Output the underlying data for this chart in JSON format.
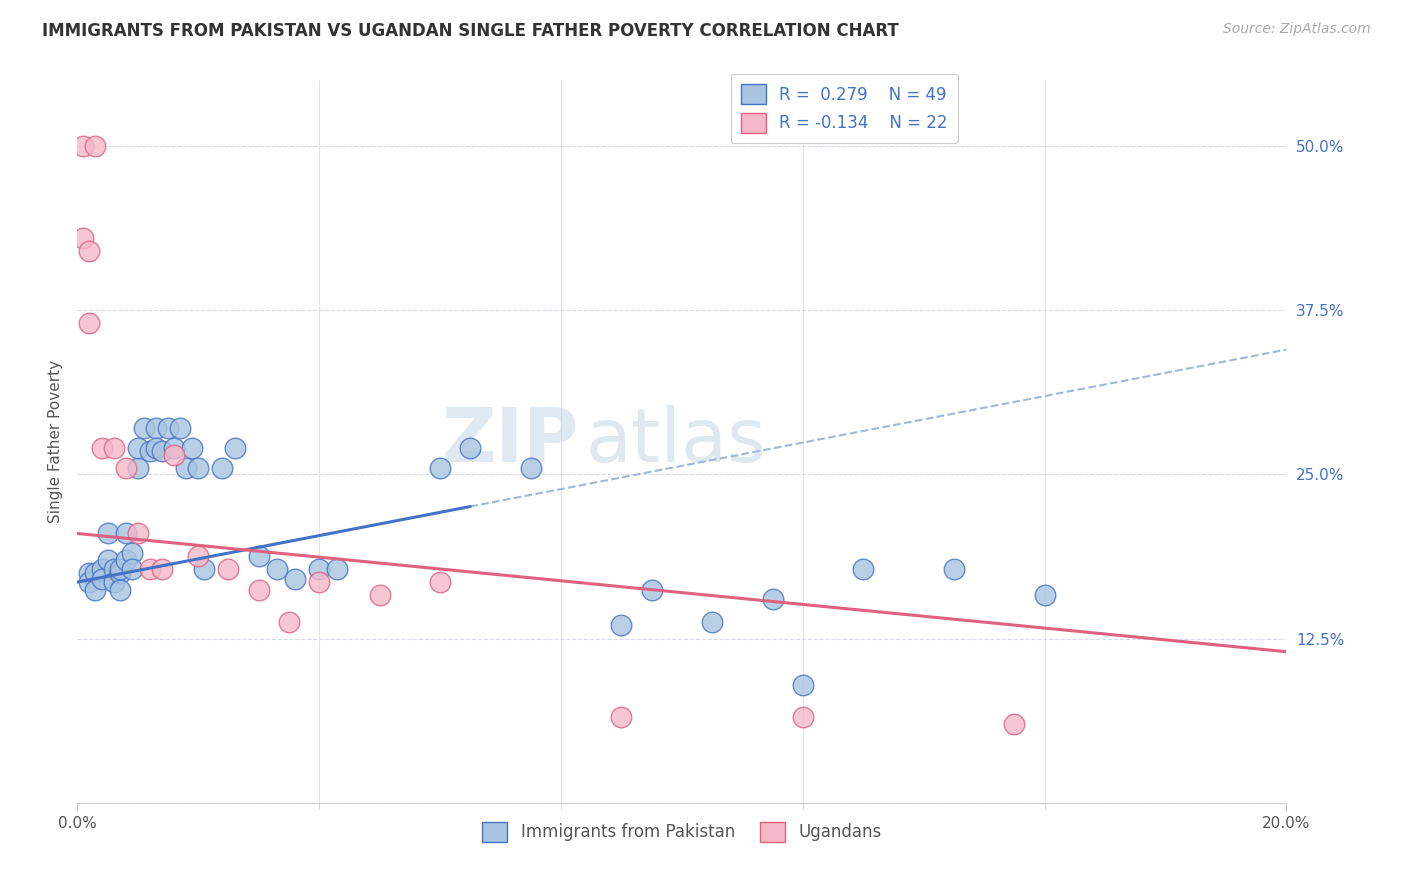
{
  "title": "IMMIGRANTS FROM PAKISTAN VS UGANDAN SINGLE FATHER POVERTY CORRELATION CHART",
  "source": "Source: ZipAtlas.com",
  "ylabel": "Single Father Poverty",
  "xlim": [
    0.0,
    0.2
  ],
  "ylim": [
    0.0,
    0.55
  ],
  "y_ticks_right": [
    0.0,
    0.125,
    0.25,
    0.375,
    0.5
  ],
  "y_tick_labels_right": [
    "",
    "12.5%",
    "25.0%",
    "37.5%",
    "50.0%"
  ],
  "color_pakistan": "#a8c4e0",
  "color_ugandan": "#f4b8c8",
  "color_pakistan_line": "#4472c4",
  "color_ugandan_line": "#e06080",
  "color_legend_text": "#4472c4",
  "watermark_zip": "ZIP",
  "watermark_atlas": "atlas",
  "background_color": "#ffffff",
  "grid_color": "#d8d8e8",
  "pakistan_x": [
    0.002,
    0.002,
    0.003,
    0.003,
    0.004,
    0.004,
    0.005,
    0.005,
    0.006,
    0.006,
    0.007,
    0.007,
    0.007,
    0.008,
    0.008,
    0.009,
    0.009,
    0.01,
    0.01,
    0.011,
    0.012,
    0.013,
    0.013,
    0.014,
    0.015,
    0.016,
    0.017,
    0.018,
    0.019,
    0.02,
    0.021,
    0.024,
    0.026,
    0.03,
    0.033,
    0.036,
    0.04,
    0.043,
    0.06,
    0.065,
    0.075,
    0.09,
    0.095,
    0.105,
    0.115,
    0.12,
    0.13,
    0.145,
    0.16
  ],
  "pakistan_y": [
    0.175,
    0.168,
    0.175,
    0.162,
    0.178,
    0.17,
    0.205,
    0.185,
    0.178,
    0.168,
    0.175,
    0.162,
    0.178,
    0.205,
    0.185,
    0.19,
    0.178,
    0.255,
    0.27,
    0.285,
    0.268,
    0.285,
    0.27,
    0.268,
    0.285,
    0.27,
    0.285,
    0.255,
    0.27,
    0.255,
    0.178,
    0.255,
    0.27,
    0.188,
    0.178,
    0.17,
    0.178,
    0.178,
    0.255,
    0.27,
    0.255,
    0.135,
    0.162,
    0.138,
    0.155,
    0.09,
    0.178,
    0.178,
    0.158
  ],
  "ugandan_x": [
    0.001,
    0.001,
    0.002,
    0.002,
    0.003,
    0.004,
    0.006,
    0.008,
    0.01,
    0.012,
    0.014,
    0.016,
    0.02,
    0.025,
    0.03,
    0.035,
    0.04,
    0.05,
    0.06,
    0.09,
    0.12,
    0.155
  ],
  "ugandan_y": [
    0.5,
    0.43,
    0.42,
    0.365,
    0.5,
    0.27,
    0.27,
    0.255,
    0.205,
    0.178,
    0.178,
    0.265,
    0.188,
    0.178,
    0.162,
    0.138,
    0.168,
    0.158,
    0.168,
    0.065,
    0.065,
    0.06
  ],
  "pk_line_x": [
    0.0,
    0.2
  ],
  "pk_line_y": [
    0.168,
    0.345
  ],
  "ug_line_x": [
    0.0,
    0.2
  ],
  "ug_line_y": [
    0.205,
    0.115
  ]
}
